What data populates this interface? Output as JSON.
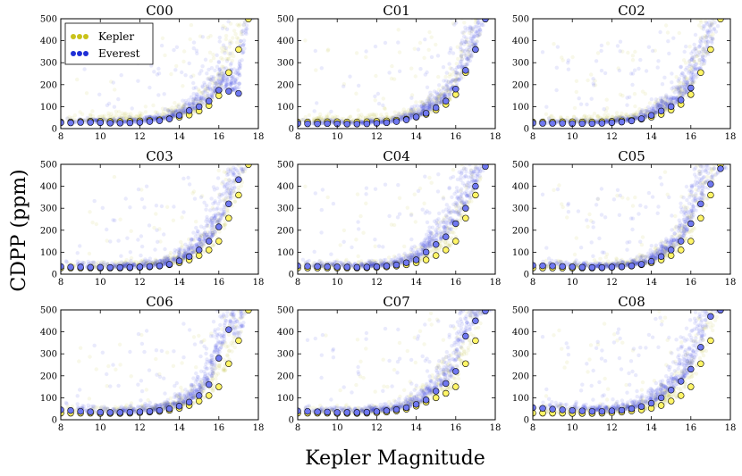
{
  "chart_data": {
    "type": "scatter",
    "ylabel": "CDPP (ppm)",
    "xlabel": "Kepler Magnitude",
    "xlim": [
      8,
      18
    ],
    "ylim": [
      0,
      500
    ],
    "xticks": [
      "8",
      "10",
      "12",
      "14",
      "16",
      "18"
    ],
    "yticks": [
      "0",
      "100",
      "200",
      "300",
      "400",
      "500"
    ],
    "legend": {
      "position": "top-left",
      "entries": [
        {
          "name": "Kepler",
          "color": "#c9c21a"
        },
        {
          "name": "Everest",
          "color": "#1f2fd6"
        }
      ]
    },
    "colors": {
      "kepler_cloud": "#b5ad10",
      "everest_cloud": "#2a33e0",
      "kepler_median": "#fff566",
      "everest_median": "#6f78f0"
    },
    "mag_bins": [
      8.0,
      8.5,
      9.0,
      9.5,
      10.0,
      10.5,
      11.0,
      11.5,
      12.0,
      12.5,
      13.0,
      13.5,
      14.0,
      14.5,
      15.0,
      15.5,
      16.0,
      16.5,
      17.0,
      17.5
    ],
    "panels": [
      {
        "title": "C00",
        "kepler": [
          30,
          30,
          32,
          33,
          33,
          32,
          32,
          33,
          35,
          37,
          40,
          45,
          52,
          62,
          80,
          105,
          150,
          255,
          360,
          500
        ],
        "everest": [
          27,
          26,
          28,
          28,
          27,
          25,
          25,
          26,
          28,
          32,
          36,
          44,
          60,
          82,
          100,
          125,
          175,
          170,
          160,
          null
        ]
      },
      {
        "title": "C01",
        "kepler": [
          30,
          30,
          30,
          31,
          31,
          30,
          30,
          31,
          33,
          35,
          38,
          43,
          52,
          65,
          85,
          110,
          155,
          255,
          360,
          500
        ],
        "everest": [
          23,
          22,
          22,
          23,
          22,
          21,
          21,
          22,
          24,
          27,
          32,
          40,
          53,
          70,
          95,
          125,
          180,
          265,
          360,
          500
        ]
      },
      {
        "title": "C02",
        "kepler": [
          30,
          30,
          30,
          31,
          31,
          30,
          30,
          31,
          33,
          35,
          38,
          43,
          52,
          65,
          85,
          110,
          155,
          255,
          360,
          500
        ],
        "everest": [
          25,
          24,
          24,
          24,
          23,
          23,
          23,
          24,
          27,
          30,
          35,
          45,
          60,
          80,
          100,
          130,
          185,
          null,
          null,
          null
        ]
      },
      {
        "title": "C03",
        "kepler": [
          28,
          28,
          28,
          28,
          28,
          28,
          28,
          29,
          31,
          33,
          37,
          43,
          52,
          65,
          85,
          110,
          150,
          255,
          360,
          500
        ],
        "everest": [
          35,
          32,
          32,
          31,
          31,
          30,
          30,
          31,
          33,
          35,
          38,
          45,
          60,
          80,
          110,
          150,
          215,
          320,
          430,
          null
        ]
      },
      {
        "title": "C04",
        "kepler": [
          28,
          28,
          28,
          28,
          28,
          28,
          28,
          29,
          31,
          33,
          37,
          43,
          52,
          65,
          85,
          110,
          150,
          255,
          360,
          500
        ],
        "everest": [
          38,
          36,
          35,
          34,
          33,
          32,
          31,
          32,
          34,
          37,
          42,
          52,
          65,
          100,
          135,
          170,
          230,
          300,
          400,
          490
        ]
      },
      {
        "title": "C05",
        "kepler": [
          28,
          28,
          28,
          28,
          28,
          28,
          28,
          29,
          31,
          33,
          37,
          43,
          52,
          65,
          85,
          110,
          150,
          255,
          360,
          500
        ],
        "everest": [
          40,
          38,
          37,
          35,
          33,
          31,
          30,
          30,
          32,
          34,
          38,
          45,
          58,
          80,
          110,
          150,
          230,
          320,
          410,
          480
        ]
      },
      {
        "title": "C06",
        "kepler": [
          30,
          30,
          30,
          30,
          29,
          29,
          29,
          30,
          32,
          35,
          38,
          43,
          52,
          65,
          85,
          110,
          150,
          255,
          360,
          500
        ],
        "everest": [
          45,
          42,
          38,
          36,
          34,
          33,
          33,
          34,
          36,
          38,
          42,
          50,
          62,
          80,
          110,
          160,
          280,
          410,
          null,
          null
        ]
      },
      {
        "title": "C07",
        "kepler": [
          30,
          30,
          30,
          30,
          29,
          29,
          29,
          30,
          32,
          35,
          40,
          48,
          62,
          80,
          100,
          120,
          150,
          255,
          360,
          500
        ],
        "everest": [
          40,
          38,
          36,
          35,
          33,
          33,
          33,
          34,
          37,
          41,
          46,
          55,
          70,
          90,
          130,
          165,
          220,
          380,
          450,
          495
        ]
      },
      {
        "title": "C08",
        "kepler": [
          30,
          30,
          30,
          30,
          29,
          29,
          29,
          30,
          32,
          35,
          40,
          45,
          52,
          65,
          85,
          110,
          150,
          255,
          360,
          500
        ],
        "everest": [
          55,
          52,
          48,
          45,
          42,
          40,
          38,
          38,
          40,
          43,
          50,
          60,
          75,
          100,
          135,
          175,
          230,
          330,
          470,
          500
        ]
      }
    ]
  }
}
